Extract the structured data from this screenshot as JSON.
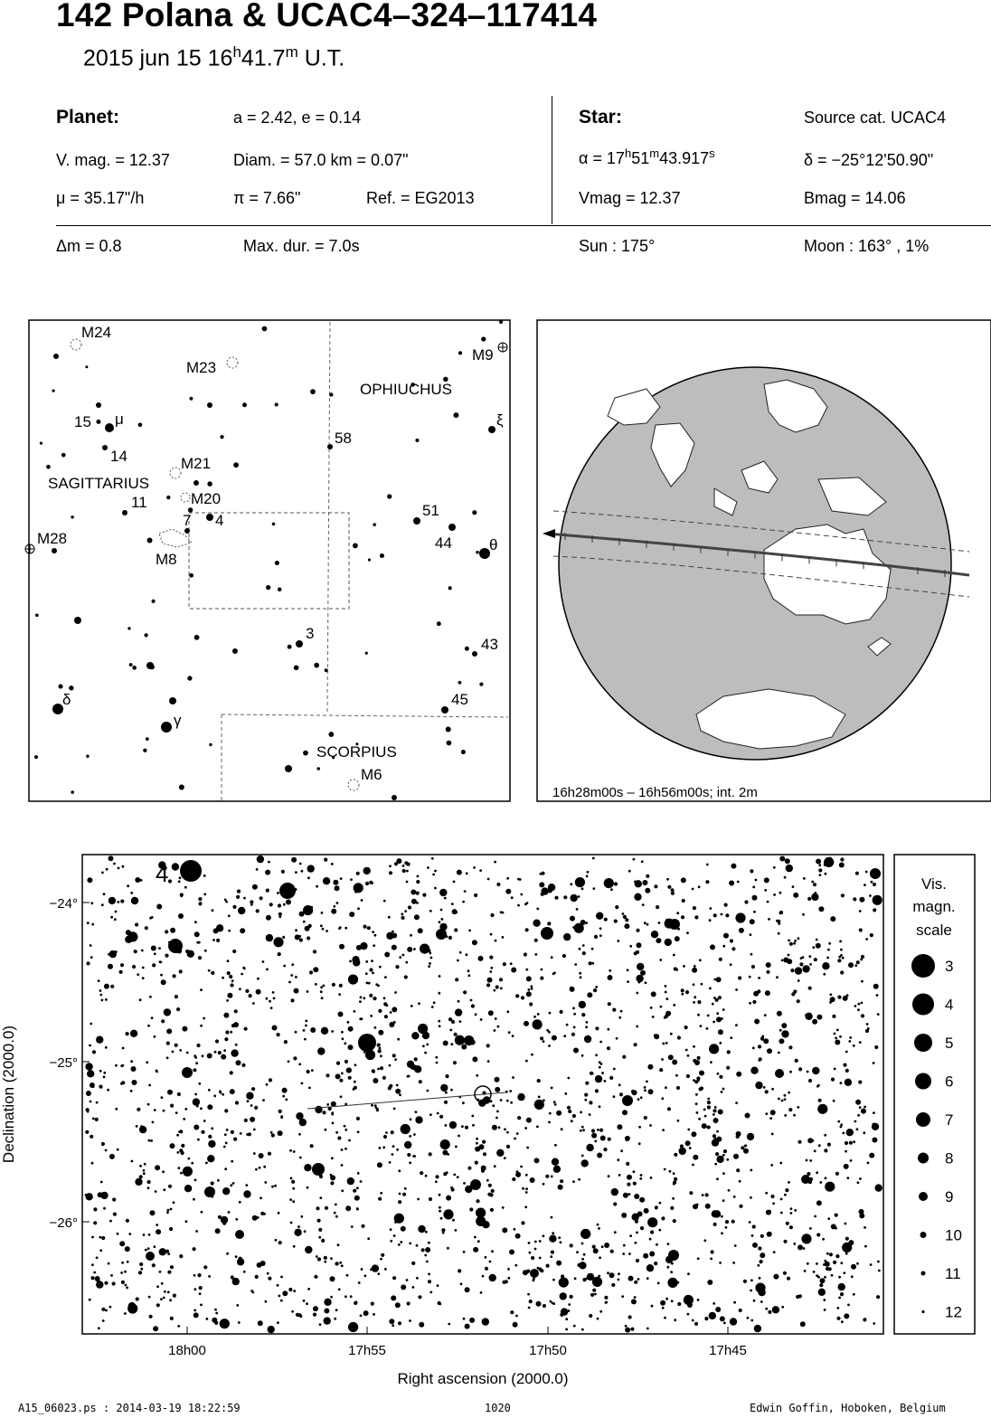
{
  "header": {
    "title": "142 Polana  &  UCAC4–324–117414",
    "date": "2015 jun 15  16",
    "time_h_sup": "h",
    "time_min": "41.7",
    "time_m_sup": "m",
    "time_suffix": " U.T."
  },
  "planet": {
    "heading": "Planet:",
    "orbit": "a = 2.42, e = 0.14",
    "vmag": "V. mag. = 12.37",
    "diam": "Diam. = 57.0 km = 0.07\"",
    "mu": "μ =  35.17\"/h",
    "pi": "π =  7.66\"",
    "ref": "Ref. = EG2013"
  },
  "star": {
    "heading": "Star:",
    "source": "Source cat.  UCAC4",
    "ra_prefix": "α = 17",
    "ra_h": "h",
    "ra_min": "51",
    "ra_m": "m",
    "ra_sec": "43.917",
    "ra_s": "s",
    "dec": "δ = −25°12'50.90\"",
    "vmag": "Vmag = 12.37",
    "bmag": "Bmag = 14.06"
  },
  "event": {
    "dm": "Δm = 0.8",
    "maxdur": "Max. dur. = 7.0s",
    "sun": "Sun : 175°",
    "moon": "Moon : 163° ,  1%"
  },
  "finder": {
    "labels": [
      {
        "id": "m24",
        "text": "M24"
      },
      {
        "id": "m23",
        "text": "M23"
      },
      {
        "id": "m9",
        "text": "M9"
      },
      {
        "id": "ophiuchus",
        "text": "OPHIUCHUS"
      },
      {
        "id": "n15",
        "text": "15"
      },
      {
        "id": "mu",
        "text": "μ"
      },
      {
        "id": "xi",
        "text": "ξ"
      },
      {
        "id": "n58",
        "text": "58"
      },
      {
        "id": "n14",
        "text": "14"
      },
      {
        "id": "m21",
        "text": "M21"
      },
      {
        "id": "sagittarius",
        "text": "SAGITTARIUS"
      },
      {
        "id": "n11",
        "text": "11"
      },
      {
        "id": "m20",
        "text": "M20"
      },
      {
        "id": "n7",
        "text": "7"
      },
      {
        "id": "n4",
        "text": "4"
      },
      {
        "id": "n51",
        "text": "51"
      },
      {
        "id": "n44",
        "text": "44"
      },
      {
        "id": "theta",
        "text": "θ"
      },
      {
        "id": "m28",
        "text": "M28"
      },
      {
        "id": "m8",
        "text": "M8"
      },
      {
        "id": "n3",
        "text": "3"
      },
      {
        "id": "n43",
        "text": "43"
      },
      {
        "id": "delta",
        "text": "δ"
      },
      {
        "id": "n45",
        "text": "45"
      },
      {
        "id": "gamma",
        "text": "γ"
      },
      {
        "id": "scorpius",
        "text": "SCORPIUS"
      },
      {
        "id": "m6",
        "text": "M6"
      }
    ]
  },
  "globe": {
    "caption": "16h28m00s – 16h56m00s; int.  2m"
  },
  "starchart": {
    "yaxis_label": "Declination (2000.0)",
    "xaxis_label": "Right ascension (2000.0)",
    "yticks": [
      "−24°",
      "−25°",
      "−26°"
    ],
    "xticks": [
      "18h00",
      "17h55",
      "17h50",
      "17h45"
    ],
    "corner_label": "4"
  },
  "legend": {
    "title_lines": [
      "Vis.",
      "magn.",
      "scale"
    ],
    "mags": [
      "3",
      "4",
      "5",
      "6",
      "7",
      "8",
      "9",
      "10",
      "11",
      "12"
    ]
  },
  "footer": {
    "file": "A15_06023.ps : 2014-03-19 18:22:59",
    "number": "1020",
    "author": "Edwin Goffin, Hoboken, Belgium"
  }
}
